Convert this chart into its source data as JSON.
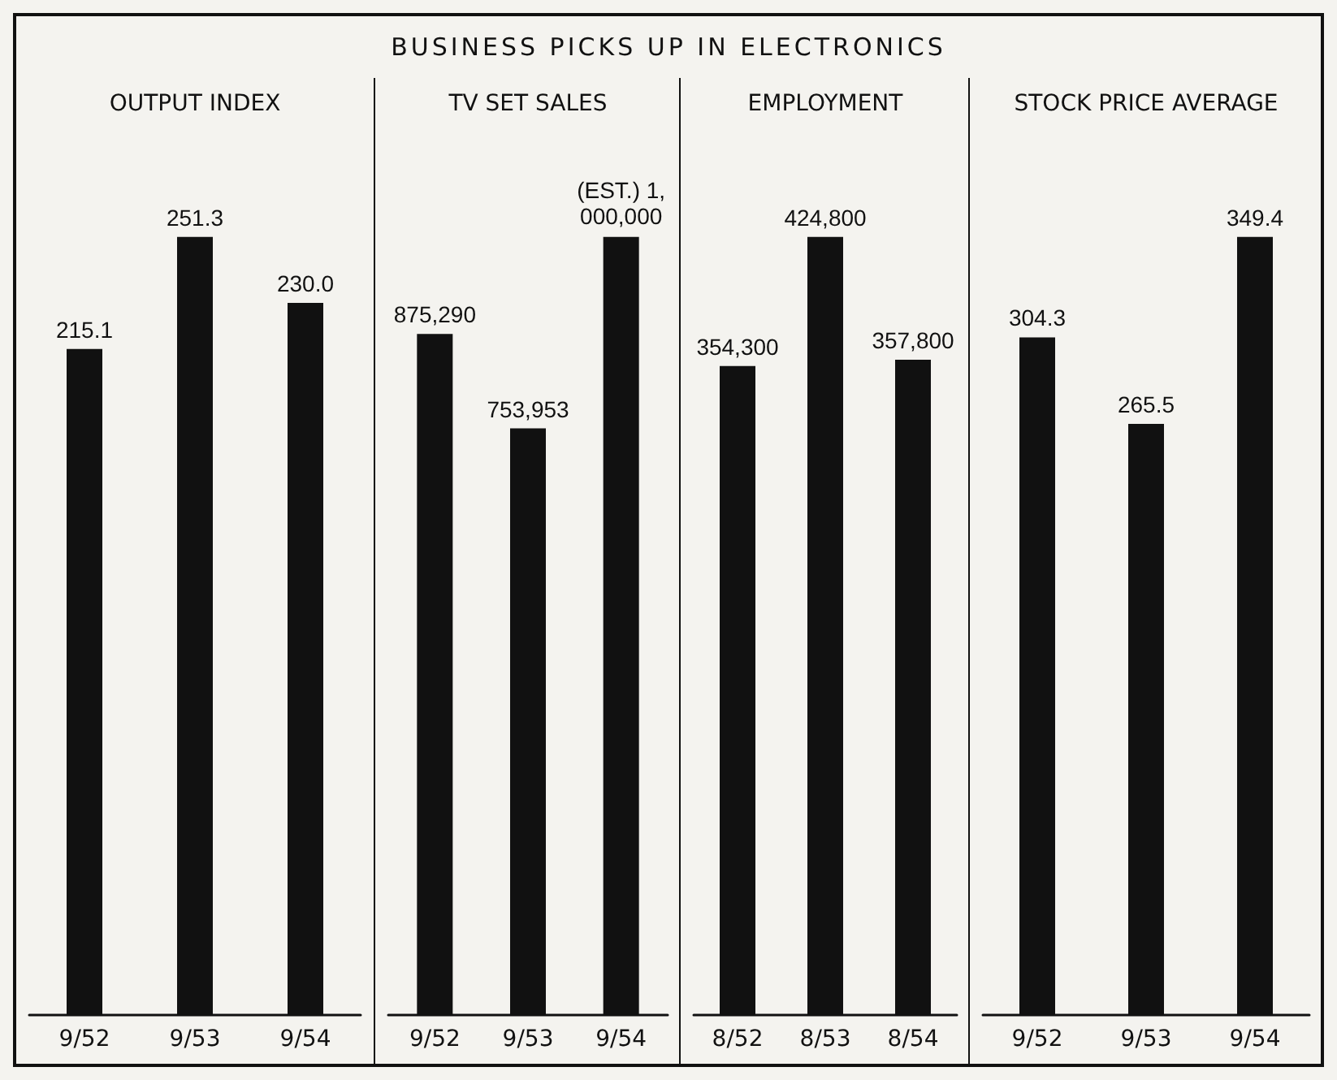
{
  "chart_data": [
    {
      "type": "bar",
      "title": "OUTPUT INDEX",
      "annotations": [
        "BUSINESS PICKS UP IN ELECTRONICS"
      ],
      "categories": [
        "9/52",
        "9/53",
        "9/54"
      ],
      "color": "#111111",
      "values": [
        215.1,
        251.3,
        230.0
      ],
      "value_labels": [
        "215.1",
        "251.3",
        "230.0"
      ]
    },
    {
      "type": "bar",
      "title": "TV SET SALES",
      "categories": [
        "9/52",
        "9/53",
        "9/54"
      ],
      "color": "#111111",
      "values": [
        875290,
        753953,
        1000000
      ],
      "value_labels": [
        "875,290",
        "753,953",
        "(EST.) 1,000,000"
      ]
    },
    {
      "type": "bar",
      "title": "EMPLOYMENT",
      "categories": [
        "8/52",
        "8/53",
        "8/54"
      ],
      "color": "#111111",
      "values": [
        354300,
        424800,
        357800
      ],
      "value_labels": [
        "354,300",
        "424,800",
        "357,800"
      ]
    },
    {
      "type": "bar",
      "title": "STOCK PRICE AVERAGE",
      "categories": [
        "9/52",
        "9/53",
        "9/54"
      ],
      "color": "#111111",
      "values": [
        304.3,
        265.5,
        349.4
      ],
      "value_labels": [
        "304.3",
        "265.5",
        "349.4"
      ]
    }
  ]
}
